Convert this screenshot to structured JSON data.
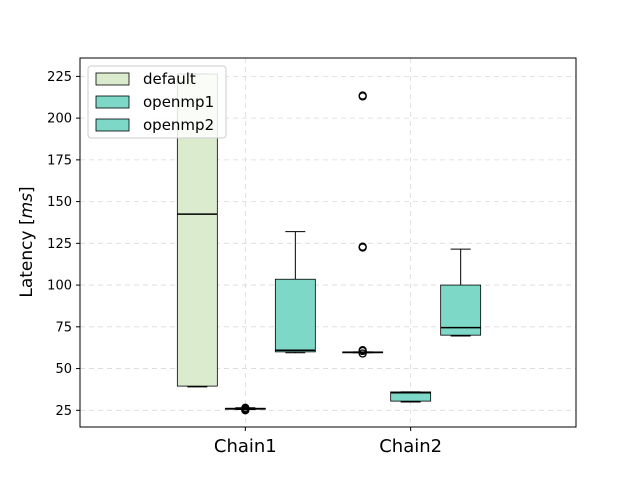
{
  "chart_data": {
    "type": "box",
    "title": "",
    "xlabel": "",
    "ylabel": "Latency [ms]",
    "ylabel_parts": {
      "prefix": "Latency ",
      "open": "[",
      "unit": "ms",
      "close": "]"
    },
    "ylim": [
      15,
      236
    ],
    "yticks": [
      25,
      50,
      75,
      100,
      125,
      150,
      175,
      200,
      225
    ],
    "categories": [
      "Chain1",
      "Chain2"
    ],
    "grid": true,
    "legend_position": "top-left",
    "series": [
      {
        "name": "default",
        "color": "#dbecce",
        "boxes": [
          {
            "category": "Chain1",
            "whislo": 39,
            "q1": 39.5,
            "med": 142.5,
            "q3": 240,
            "whishi": 240,
            "fliers": []
          },
          {
            "category": "Chain2",
            "whislo": 59.5,
            "q1": 59.5,
            "med": 59.8,
            "q3": 60,
            "whishi": 60,
            "fliers": [
              59,
              60.5,
              61,
              122.5,
              123,
              213,
              213.5
            ]
          }
        ]
      },
      {
        "name": "openmp1",
        "color": "#7dd8c8",
        "boxes": [
          {
            "category": "Chain1",
            "whislo": 25.5,
            "q1": 25.7,
            "med": 26,
            "q3": 26.2,
            "whishi": 26.5,
            "fliers": [
              25,
              25.5,
              26,
              26.5
            ]
          },
          {
            "category": "Chain2",
            "whislo": 30,
            "q1": 30.5,
            "med": 35.5,
            "q3": 36,
            "whishi": 36,
            "fliers": []
          }
        ]
      },
      {
        "name": "openmp2",
        "color": "#7dd8c8",
        "boxes": [
          {
            "category": "Chain1",
            "whislo": 59.5,
            "q1": 60,
            "med": 61,
            "q3": 103.5,
            "whishi": 132,
            "fliers": []
          },
          {
            "category": "Chain2",
            "whislo": 69.5,
            "q1": 70,
            "med": 74.5,
            "q3": 100,
            "whishi": 121.5,
            "fliers": []
          }
        ]
      }
    ]
  }
}
